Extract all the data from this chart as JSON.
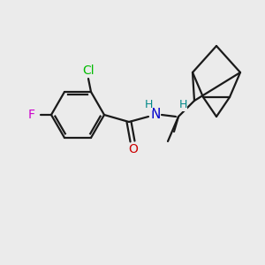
{
  "background_color": "#ebebeb",
  "bond_color": "#1a1a1a",
  "bond_width": 1.6,
  "atom_colors": {
    "Cl": "#00bb00",
    "F": "#cc00cc",
    "N": "#0000cc",
    "O": "#cc0000",
    "H": "#008888",
    "C": "#1a1a1a"
  },
  "figsize": [
    3.0,
    3.0
  ],
  "dpi": 100
}
